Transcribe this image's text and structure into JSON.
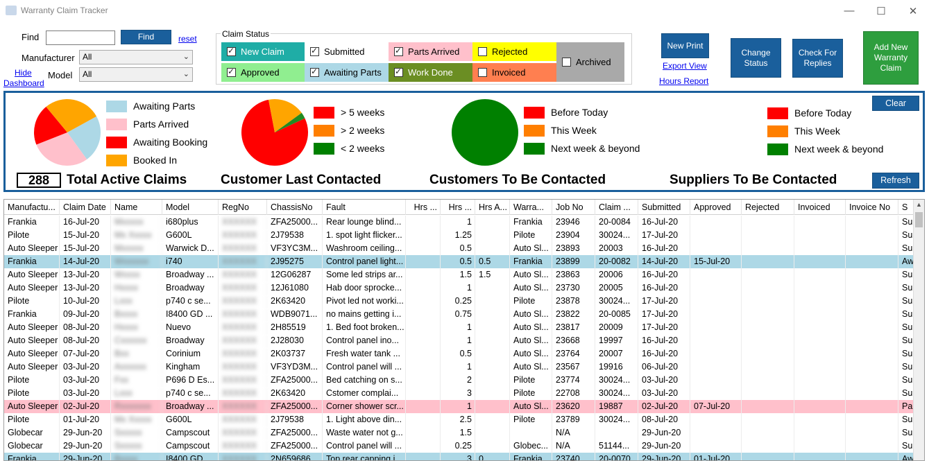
{
  "window": {
    "title": "Warranty Claim Tracker",
    "minimize": "—",
    "maximize": "☐",
    "close": "✕"
  },
  "filters": {
    "find_label": "Find",
    "find_value": "",
    "find_button": "Find",
    "reset_link": "reset",
    "manufacturer_label": "Manufacturer",
    "manufacturer_value": "All",
    "model_label": "Model",
    "model_value": "All",
    "hide_dashboard_link_1": "Hide",
    "hide_dashboard_link_2": "Dashboard"
  },
  "claim_status": {
    "caption": "Claim Status",
    "items": [
      {
        "label": "New Claim",
        "checked": true,
        "color": "#1fada6"
      },
      {
        "label": "Submitted",
        "checked": true,
        "color": "#ffffff"
      },
      {
        "label": "Parts Arrived",
        "checked": true,
        "color": "#ffc0cb"
      },
      {
        "label": "Rejected",
        "checked": false,
        "color": "#ffff00"
      },
      {
        "label": "Archived",
        "checked": false,
        "color": "#a9a9a9"
      },
      {
        "label": "Approved",
        "checked": true,
        "color": "#90ee90"
      },
      {
        "label": "Awaiting Parts",
        "checked": true,
        "color": "#add8e6"
      },
      {
        "label": "Work Done",
        "checked": true,
        "color": "#6b8e23"
      },
      {
        "label": "Invoiced",
        "checked": false,
        "color": "#ff7f50"
      }
    ]
  },
  "actions": {
    "new_print": "New Print",
    "export_view": "Export View",
    "hours_report": "Hours Report",
    "change_status": "Change Status",
    "check_for_replies": "Check For Replies",
    "add_new_claim": "Add New Warranty Claim"
  },
  "dashboard": {
    "clear_button": "Clear",
    "refresh_button": "Refresh",
    "total_active_claims_value": "288",
    "total_active_claims_label": "Total Active Claims",
    "status_legend": [
      {
        "label": "Awaiting Parts",
        "color": "#add8e6"
      },
      {
        "label": "Parts Arrived",
        "color": "#ffc0cb"
      },
      {
        "label": "Awaiting Booking",
        "color": "#ff0000"
      },
      {
        "label": "Booked In",
        "color": "#ffa500"
      }
    ],
    "last_contacted_title": "Customer Last Contacted",
    "last_contacted_legend": [
      {
        "label": "> 5 weeks",
        "color": "#ff0000"
      },
      {
        "label": "> 2 weeks",
        "color": "#ff7f00"
      },
      {
        "label": "< 2 weeks",
        "color": "#008000"
      }
    ],
    "customers_tbc_title": "Customers To Be Contacted",
    "customers_tbc_legend": [
      {
        "label": "Before Today",
        "color": "#ff0000"
      },
      {
        "label": "This Week",
        "color": "#ff7f00"
      },
      {
        "label": "Next week & beyond",
        "color": "#008000"
      }
    ],
    "suppliers_tbc_title": "Suppliers To Be Contacted",
    "suppliers_tbc_legend": [
      {
        "label": "Before Today",
        "color": "#ff0000"
      },
      {
        "label": "This Week",
        "color": "#ff7f00"
      },
      {
        "label": "Next week & beyond",
        "color": "#008000"
      }
    ]
  },
  "chart_data": [
    {
      "type": "pie",
      "slices": [
        {
          "label": "Awaiting Parts",
          "value": 23,
          "color": "#add8e6"
        },
        {
          "label": "Parts Arrived",
          "value": 29,
          "color": "#ffc0cb"
        },
        {
          "label": "Awaiting Booking",
          "value": 20,
          "color": "#ff0000"
        },
        {
          "label": "Booked In",
          "value": 28,
          "color": "#ffa500"
        }
      ]
    },
    {
      "type": "pie",
      "title": "Customer Last Contacted",
      "slices": [
        {
          "label": "> 5 weeks",
          "value": 79,
          "color": "#ff0000"
        },
        {
          "label": "> 2 weeks",
          "value": 18,
          "color": "#ffa500"
        },
        {
          "label": "< 2 weeks",
          "value": 3,
          "color": "#228b22"
        }
      ]
    },
    {
      "type": "pie",
      "title": "Customers To Be Contacted",
      "slices": [
        {
          "label": "Next week & beyond",
          "value": 100,
          "color": "#008000"
        }
      ]
    }
  ],
  "grid": {
    "columns": [
      "Manufactu...",
      "Claim Date",
      "Name",
      "Model",
      "RegNo",
      "ChassisNo",
      "Fault",
      "Hrs ...",
      "Hrs ...",
      "Hrs A...",
      "Warra...",
      "Job No",
      "Claim ...",
      "Submitted",
      "Approved",
      "Rejected",
      "Invoiced",
      "Invoice No",
      "S"
    ],
    "rows": [
      {
        "bg": "#ffffff",
        "cells": [
          "Frankia",
          "16-Jul-20",
          "Mxxxxx",
          "i680plus",
          "XXXXXX",
          "ZFA25000...",
          "Rear lounge blind...",
          "",
          "1",
          "",
          "Frankia",
          "23946",
          "20-0084",
          "16-Jul-20",
          "",
          "",
          "",
          "",
          "Su"
        ]
      },
      {
        "bg": "#ffffff",
        "cells": [
          "Pilote",
          "15-Jul-20",
          "Mx Xxxxx",
          "G600L",
          "XXXXXX",
          "2J79538",
          "1. spot light flicker...",
          "",
          "1.25",
          "",
          "Pilote",
          "23904",
          "30024...",
          "17-Jul-20",
          "",
          "",
          "",
          "",
          "Su"
        ]
      },
      {
        "bg": "#ffffff",
        "cells": [
          "Auto Sleeper",
          "15-Jul-20",
          "Mxxxxx",
          "Warwick D...",
          "XXXXXX",
          "VF3YC3M...",
          "Washroom ceiling...",
          "",
          "0.5",
          "",
          "Auto Sl...",
          "23893",
          "20003",
          "16-Jul-20",
          "",
          "",
          "",
          "",
          "Su"
        ]
      },
      {
        "bg": "#add8e6",
        "cells": [
          "Frankia",
          "14-Jul-20",
          "Wxxxxxx",
          "i740",
          "XXXXXX",
          "2J95275",
          "Control panel light...",
          "",
          "0.5",
          "0.5",
          "Frankia",
          "23899",
          "20-0082",
          "14-Jul-20",
          "15-Jul-20",
          "",
          "",
          "",
          "Aw"
        ]
      },
      {
        "bg": "#ffffff",
        "cells": [
          "Auto Sleeper",
          "13-Jul-20",
          "Wxxxx",
          "Broadway ...",
          "XXXXXX",
          "12G06287",
          "Some led strips ar...",
          "",
          "1.5",
          "1.5",
          "Auto Sl...",
          "23863",
          "20006",
          "16-Jul-20",
          "",
          "",
          "",
          "",
          "Su"
        ]
      },
      {
        "bg": "#ffffff",
        "cells": [
          "Auto Sleeper",
          "13-Jul-20",
          "Hxxxx",
          "Broadway",
          "XXXXXX",
          "12J61080",
          "Hab door sprocke...",
          "",
          "1",
          "",
          "Auto Sl...",
          "23730",
          "20005",
          "16-Jul-20",
          "",
          "",
          "",
          "",
          "Su"
        ]
      },
      {
        "bg": "#ffffff",
        "cells": [
          "Pilote",
          "10-Jul-20",
          "Lxxx",
          "p740 c se...",
          "XXXXXX",
          "2K63420",
          "Pivot led not worki...",
          "",
          "0.25",
          "",
          "Pilote",
          "23878",
          "30024...",
          "17-Jul-20",
          "",
          "",
          "",
          "",
          "Su"
        ]
      },
      {
        "bg": "#ffffff",
        "cells": [
          "Frankia",
          "09-Jul-20",
          "Bxxxx",
          "I8400 GD ...",
          "XXXXXX",
          "WDB9071...",
          "no mains getting i...",
          "",
          "0.75",
          "",
          "Auto Sl...",
          "23822",
          "20-0085",
          "17-Jul-20",
          "",
          "",
          "",
          "",
          "Su"
        ]
      },
      {
        "bg": "#ffffff",
        "cells": [
          "Auto Sleeper",
          "08-Jul-20",
          "Hxxxx",
          "Nuevo",
          "XXXXXX",
          "2H85519",
          "1. Bed foot broken...",
          "",
          "1",
          "",
          "Auto Sl...",
          "23817",
          "20009",
          "17-Jul-20",
          "",
          "",
          "",
          "",
          "Su"
        ]
      },
      {
        "bg": "#ffffff",
        "cells": [
          "Auto Sleeper",
          "08-Jul-20",
          "Cxxxxxx",
          "Broadway",
          "XXXXXX",
          "2J28030",
          "Control panel ino...",
          "",
          "1",
          "",
          "Auto Sl...",
          "23668",
          "19997",
          "16-Jul-20",
          "",
          "",
          "",
          "",
          "Su"
        ]
      },
      {
        "bg": "#ffffff",
        "cells": [
          "Auto Sleeper",
          "07-Jul-20",
          "Bxx",
          "Corinium",
          "XXXXXX",
          "2K03737",
          "Fresh water tank ...",
          "",
          "0.5",
          "",
          "Auto Sl...",
          "23764",
          "20007",
          "16-Jul-20",
          "",
          "",
          "",
          "",
          "Su"
        ]
      },
      {
        "bg": "#ffffff",
        "cells": [
          "Auto Sleeper",
          "03-Jul-20",
          "Axxxxxx",
          "Kingham",
          "XXXXXX",
          "VF3YD3M...",
          "Control panel will ...",
          "",
          "1",
          "",
          "Auto Sl...",
          "23567",
          "19916",
          "06-Jul-20",
          "",
          "",
          "",
          "",
          "Su"
        ]
      },
      {
        "bg": "#ffffff",
        "cells": [
          "Pilote",
          "03-Jul-20",
          "Fxx",
          "P696 D Es...",
          "XXXXXX",
          "ZFA25000...",
          "Bed catching on s...",
          "",
          "2",
          "",
          "Pilote",
          "23774",
          "30024...",
          "03-Jul-20",
          "",
          "",
          "",
          "",
          "Su"
        ]
      },
      {
        "bg": "#ffffff",
        "cells": [
          "Pilote",
          "03-Jul-20",
          "Lxxx",
          "p740 c se...",
          "XXXXXX",
          "2K63420",
          "Cstomer complai...",
          "",
          "3",
          "",
          "Pilote",
          "22708",
          "30024...",
          "03-Jul-20",
          "",
          "",
          "",
          "",
          "Su"
        ]
      },
      {
        "bg": "#ffc0cb",
        "cells": [
          "Auto Sleeper",
          "02-Jul-20",
          "Rxxxxxxx",
          "Broadway ...",
          "XXXXXX",
          "ZFA25000...",
          "Corner shower scr...",
          "",
          "1",
          "",
          "Auto Sl...",
          "23620",
          "19887",
          "02-Jul-20",
          "07-Jul-20",
          "",
          "",
          "",
          "Pa"
        ]
      },
      {
        "bg": "#ffffff",
        "cells": [
          "Pilote",
          "01-Jul-20",
          "Mx Xxxxx",
          "G600L",
          "XXXXXX",
          "2J79538",
          "1. Light above din...",
          "",
          "2.5",
          "",
          "Pilote",
          "23789",
          "30024...",
          "08-Jul-20",
          "",
          "",
          "",
          "",
          "Su"
        ]
      },
      {
        "bg": "#ffffff",
        "cells": [
          "Globecar",
          "29-Jun-20",
          "Sxxxxx",
          "Campscout",
          "XXXXXX",
          "ZFA25000...",
          "Waste water not g...",
          "",
          "1.5",
          "",
          "",
          "N/A",
          "",
          "29-Jun-20",
          "",
          "",
          "",
          "",
          "Su"
        ]
      },
      {
        "bg": "#ffffff",
        "cells": [
          "Globecar",
          "29-Jun-20",
          "Sxxxxx",
          "Campscout",
          "XXXXXX",
          "ZFA25000...",
          "Control panel will ...",
          "",
          "0.25",
          "",
          "Globec...",
          "N/A",
          "51144...",
          "29-Jun-20",
          "",
          "",
          "",
          "",
          "Su"
        ]
      },
      {
        "bg": "#add8e6",
        "cells": [
          "Frankia",
          "29-Jun-20",
          "Bxxxx",
          "I8400 GD",
          "XXXXXX",
          "2N659686",
          "Top rear capping i...",
          "",
          "3",
          "0",
          "Frankia",
          "23740",
          "20-0070",
          "29-Jun-20",
          "01-Jul-20",
          "",
          "",
          "",
          "Aw"
        ]
      }
    ]
  }
}
